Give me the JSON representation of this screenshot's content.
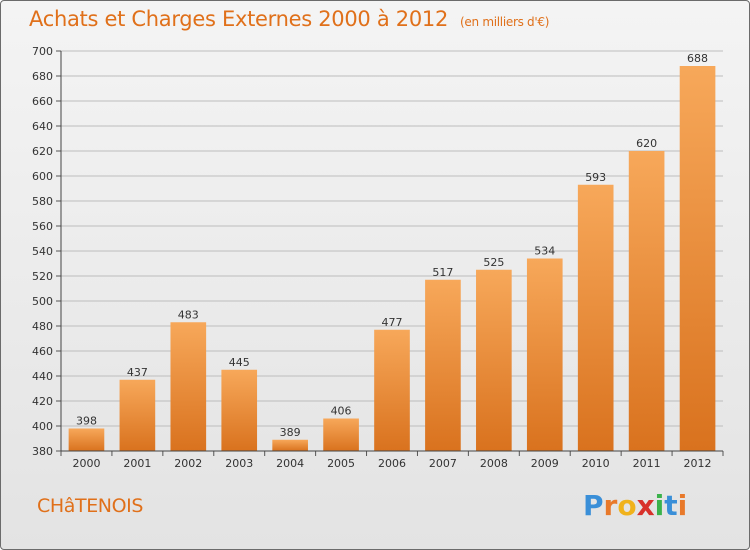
{
  "chart_data": {
    "type": "bar",
    "title": "Achats et Charges Externes 2000 à 2012",
    "subtitle": "(en milliers d'€)",
    "categories": [
      "2000",
      "2001",
      "2002",
      "2003",
      "2004",
      "2005",
      "2006",
      "2007",
      "2008",
      "2009",
      "2010",
      "2011",
      "2012"
    ],
    "values": [
      398,
      437,
      483,
      445,
      389,
      406,
      477,
      517,
      525,
      534,
      593,
      620,
      688
    ],
    "ylim": [
      380,
      700
    ],
    "yticks": [
      380,
      400,
      420,
      440,
      460,
      480,
      500,
      520,
      540,
      560,
      580,
      600,
      620,
      640,
      660,
      680,
      700
    ],
    "grid": true,
    "bar_color_top": "#f7a85a",
    "bar_color_bottom": "#d9721e",
    "grid_color": "#bdbdbd"
  },
  "commune": "CHâTENOIS",
  "logo": {
    "letters": [
      "P",
      "r",
      "o",
      "x",
      "i",
      "t",
      "i"
    ],
    "colors": [
      "#3a8fd8",
      "#e8792a",
      "#f0b21c",
      "#d8302a",
      "#3bb24b",
      "#3a8fd8",
      "#e8792a"
    ]
  },
  "title_color": "#e0701a"
}
